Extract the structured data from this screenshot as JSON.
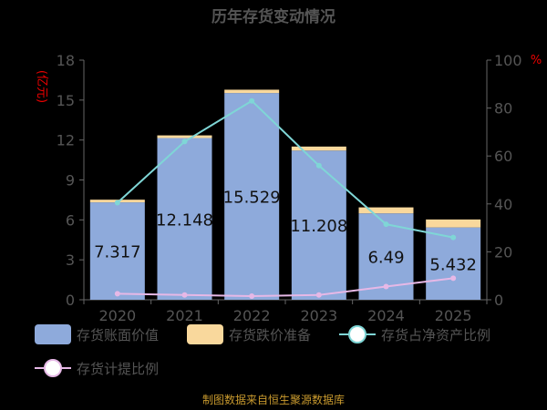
{
  "chart_data": {
    "type": "bar",
    "title": "历年存货变动情况",
    "categories": [
      "2020",
      "2021",
      "2022",
      "2023",
      "2024",
      "2025"
    ],
    "y_left": {
      "unit": "(亿元)",
      "ticks": [
        "0",
        "3",
        "6",
        "9",
        "12",
        "15",
        "18"
      ],
      "min": 0,
      "max": 18
    },
    "y_right": {
      "unit": "%",
      "ticks": [
        "0",
        "20",
        "40",
        "60",
        "80",
        "100"
      ],
      "min": 0,
      "max": 100
    },
    "series": [
      {
        "name": "存货账面价值",
        "kind": "bar",
        "axis": "left",
        "color": "#8eaadb",
        "values": [
          7.317,
          12.148,
          15.529,
          11.208,
          6.49,
          5.432
        ],
        "labels": [
          "7.317",
          "12.148",
          "15.529",
          "11.208",
          "6.49",
          "5.432"
        ]
      },
      {
        "name": "存货跌价准备",
        "kind": "bar-stack",
        "axis": "left",
        "color": "#f9d89c",
        "values": [
          0.2,
          0.2,
          0.25,
          0.3,
          0.45,
          0.6
        ]
      },
      {
        "name": "存货占净资产比例",
        "kind": "line",
        "axis": "right",
        "color": "#7fd6d6",
        "values": [
          40.5,
          66,
          83,
          56,
          31.5,
          26
        ]
      },
      {
        "name": "存货计提比例",
        "kind": "line",
        "axis": "right",
        "color": "#e6b8e6",
        "values": [
          2.5,
          2,
          1.5,
          2,
          5.5,
          9
        ]
      }
    ],
    "grid": false,
    "legend_position": "bottom"
  },
  "source": "制图数据来自恒生聚源数据库"
}
